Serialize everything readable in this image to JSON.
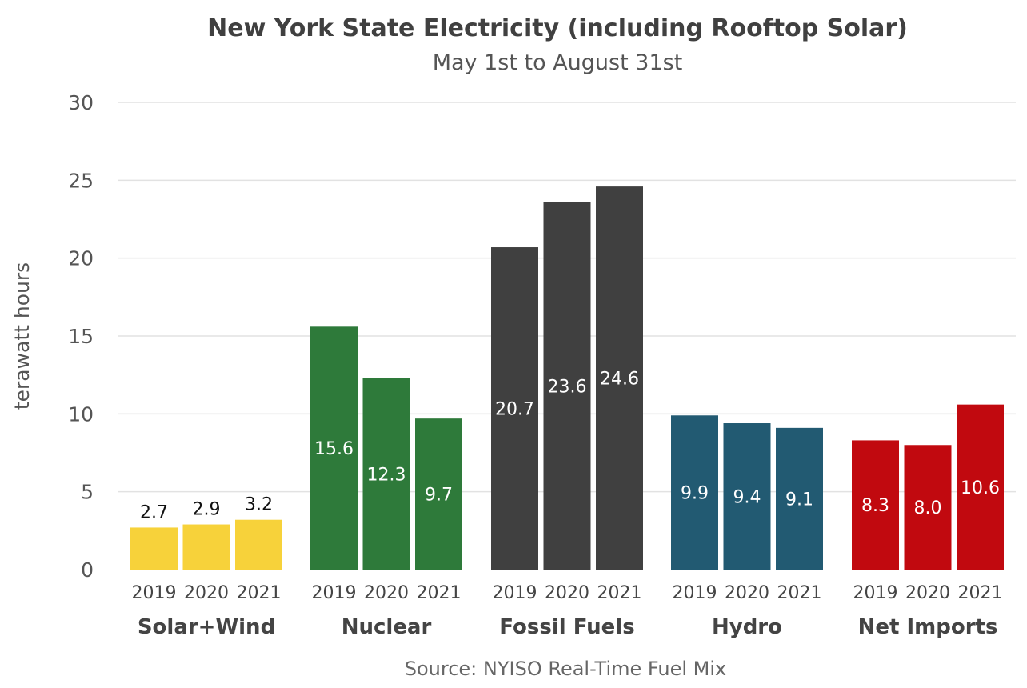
{
  "chart_data": {
    "type": "bar",
    "title": "New York State Electricity (including Rooftop Solar)",
    "subtitle": "May 1st to August 31st",
    "ylabel": "terawatt hours",
    "source": "Source: NYISO Real-Time Fuel Mix",
    "ylim": [
      0,
      30
    ],
    "yticks": [
      0,
      5,
      10,
      15,
      20,
      25,
      30
    ],
    "grid": true,
    "years": [
      "2019",
      "2020",
      "2021"
    ],
    "groups": [
      {
        "name": "Solar+Wind",
        "color": "#f7d23a",
        "label_color": "#111111",
        "label_position": "above",
        "values": [
          2.7,
          2.9,
          3.2
        ],
        "labels": [
          "2.7",
          "2.9",
          "3.2"
        ]
      },
      {
        "name": "Nuclear",
        "color": "#2e7a3a",
        "label_color": "#ffffff",
        "label_position": "inside",
        "values": [
          15.6,
          12.3,
          9.7
        ],
        "labels": [
          "15.6",
          "12.3",
          "9.7"
        ]
      },
      {
        "name": "Fossil Fuels",
        "color": "#404040",
        "label_color": "#ffffff",
        "label_position": "inside",
        "values": [
          20.7,
          23.6,
          24.6
        ],
        "labels": [
          "20.7",
          "23.6",
          "24.6"
        ]
      },
      {
        "name": "Hydro",
        "color": "#225a72",
        "label_color": "#ffffff",
        "label_position": "inside",
        "values": [
          9.9,
          9.4,
          9.1
        ],
        "labels": [
          "9.9",
          "9.4",
          "9.1"
        ]
      },
      {
        "name": "Net Imports",
        "color": "#c1090f",
        "label_color": "#ffffff",
        "label_position": "inside",
        "values": [
          8.3,
          8.0,
          10.6
        ],
        "labels": [
          "8.3",
          "8.0",
          "10.6"
        ]
      }
    ]
  }
}
